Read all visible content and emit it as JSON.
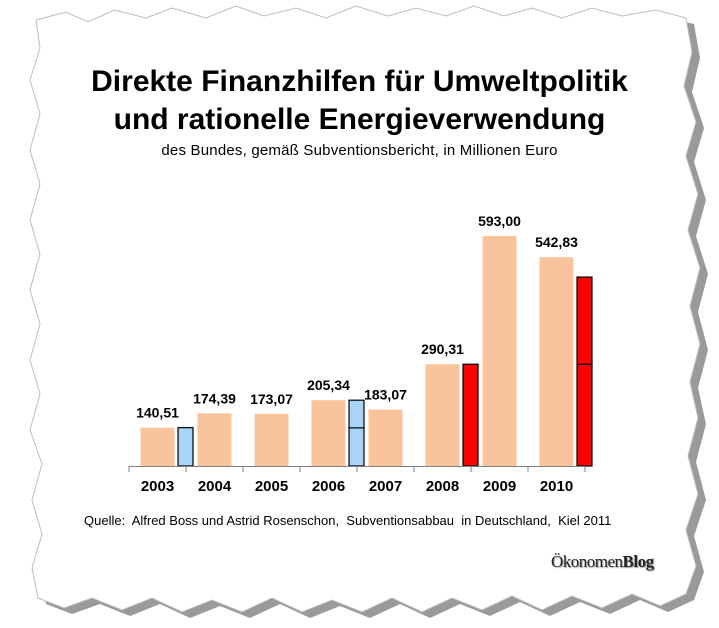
{
  "title_line1": "Direkte Finanzhilfen für Umweltpolitik",
  "title_line2": "und rationelle Energieverwendung",
  "subtitle": "des Bundes, gemäß Subventionsbericht,  in Millionen Euro",
  "source": "Quelle:  Alfred Boss und Astrid Rosenschon,  Subventionsabbau  in Deutschland,  Kiel 2011",
  "brand": {
    "part1": "Ökonomen",
    "part2": "Blog"
  },
  "colors": {
    "bar_main": "#f9c49b",
    "overlay_blue": "#a9d3f7",
    "overlay_red": "#ff0000",
    "outline": "#000000",
    "paper_shadow": "#9a9a9a"
  },
  "chart_data": {
    "type": "bar",
    "categories": [
      "2003",
      "2004",
      "2005",
      "2006",
      "2007",
      "2008",
      "2009",
      "2010"
    ],
    "values": [
      140.51,
      174.39,
      173.07,
      205.34,
      183.07,
      290.31,
      593.0,
      542.83
    ],
    "data_labels": [
      "140,51",
      "174,39",
      "173,07",
      "205,34",
      "183,07",
      "290,31",
      "593,00",
      "542,83"
    ],
    "ylim": [
      50,
      600
    ],
    "grid": false,
    "legend": "none",
    "overlays": [
      {
        "category": "2003",
        "color": "blue",
        "segments": [
          [
            50,
            140.51
          ]
        ]
      },
      {
        "category": "2006",
        "color": "blue",
        "segments": [
          [
            50,
            140
          ],
          [
            140,
            205.34
          ]
        ]
      },
      {
        "category": "2008",
        "color": "red",
        "segments": [
          [
            50,
            290.31
          ]
        ]
      },
      {
        "category": "2010",
        "color": "red",
        "segments": [
          [
            50,
            290.31
          ],
          [
            290.31,
            496
          ]
        ]
      }
    ]
  }
}
